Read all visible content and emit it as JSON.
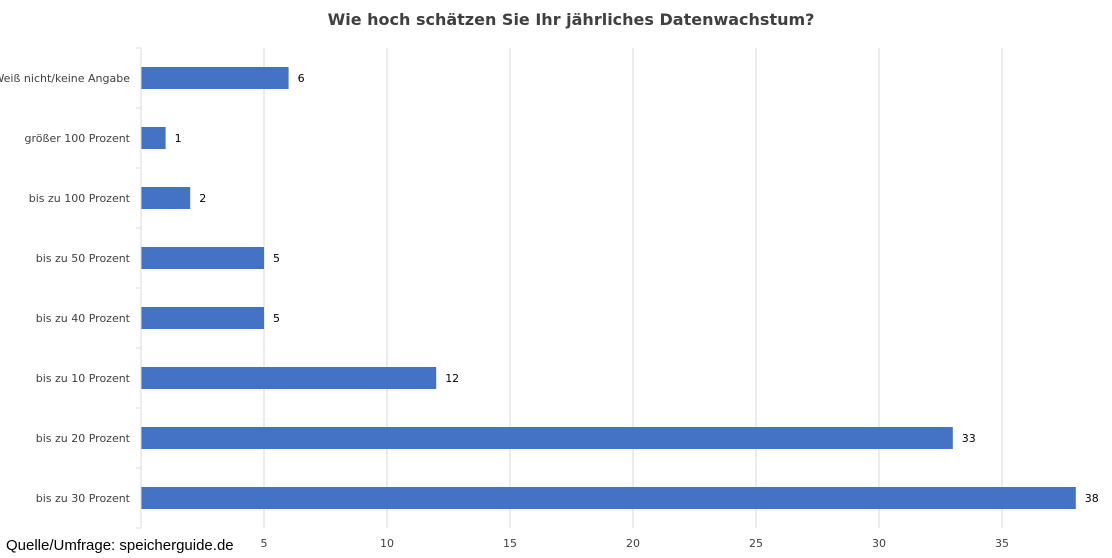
{
  "chart_data": {
    "type": "bar",
    "orientation": "horizontal",
    "title": "Wie hoch schätzen Sie Ihr jährliches Datenwachstum?",
    "categories": [
      "Weiß nicht/keine Angabe",
      "größer 100 Prozent",
      "bis zu 100 Prozent",
      "bis zu 50 Prozent",
      "bis zu 40 Prozent",
      "bis zu 10 Prozent",
      "bis zu 20 Prozent",
      "bis zu 30 Prozent"
    ],
    "values": [
      6,
      1,
      2,
      5,
      5,
      12,
      33,
      38
    ],
    "xlim": [
      0,
      38
    ],
    "xticks": [
      5,
      10,
      15,
      20,
      25,
      30,
      35
    ],
    "grid": true,
    "legend": "none",
    "bar_color": "#4472C4",
    "grid_color": "#D9D9D9"
  },
  "source": "Quelle/Umfrage: speicherguide.de"
}
